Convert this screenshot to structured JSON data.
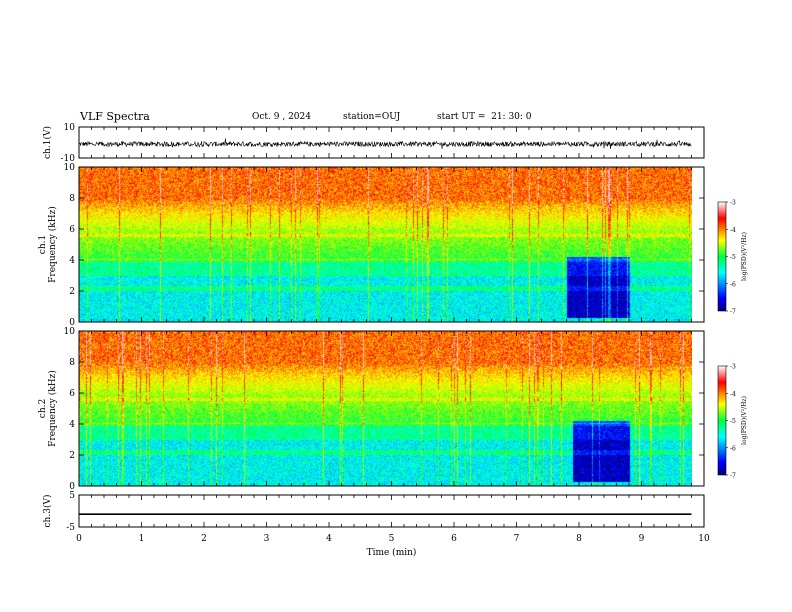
{
  "header": {
    "title": "VLF Spectra",
    "date": "Oct. 9 , 2024",
    "station": "station=OUJ",
    "start_ut": "start UT =  21: 30: 0"
  },
  "chart_data": [
    {
      "type": "line",
      "panel": "ch1-waveform",
      "ylabel": "ch.1(V)",
      "ylim": [
        -10,
        10
      ],
      "yticks": [
        "10",
        "-10"
      ],
      "x_range_min": [
        0,
        9.8
      ],
      "description_level": "noise around -1 V",
      "color": "#000000"
    },
    {
      "type": "heatmap",
      "panel": "ch1-spectrogram",
      "ylabel": "ch.1\nFrequency (kHz)",
      "ylabel_lines": [
        "ch.1",
        "Frequency (kHz)"
      ],
      "ylim": [
        0,
        10
      ],
      "yticks": [
        "0",
        "2",
        "4",
        "6",
        "8",
        "10"
      ],
      "x_range_min": [
        0,
        9.8
      ],
      "color_range": [
        -7,
        -3
      ],
      "colorbar_label": "log(PSD)(V²/Hz)",
      "colorbar_ticks": [
        "-3",
        "-4",
        "-5",
        "-6",
        "-7"
      ],
      "low_activity_window_min": [
        7.8,
        8.8
      ]
    },
    {
      "type": "heatmap",
      "panel": "ch2-spectrogram",
      "ylabel_lines": [
        "ch.2",
        "Frequency (kHz)"
      ],
      "ylim": [
        0,
        10
      ],
      "yticks": [
        "0",
        "2",
        "4",
        "6",
        "8",
        "10"
      ],
      "x_range_min": [
        0,
        9.8
      ],
      "color_range": [
        -7,
        -3
      ],
      "colorbar_label": "log(PSD)(V²/Hz)",
      "colorbar_ticks": [
        "-3",
        "-4",
        "-5",
        "-6",
        "-7"
      ],
      "low_activity_window_min": [
        7.9,
        8.8
      ]
    },
    {
      "type": "line",
      "panel": "ch3-waveform",
      "ylabel": "ch.3(V)",
      "ylim": [
        -5,
        5
      ],
      "yticks": [
        "5",
        "-5"
      ],
      "constant_value": -1,
      "x_range_min": [
        0,
        9.8
      ],
      "xlabel": "Time (min)",
      "xlim": [
        0,
        10
      ],
      "xticks": [
        "0",
        "1",
        "2",
        "3",
        "4",
        "5",
        "6",
        "7",
        "8",
        "9",
        "10"
      ]
    }
  ]
}
